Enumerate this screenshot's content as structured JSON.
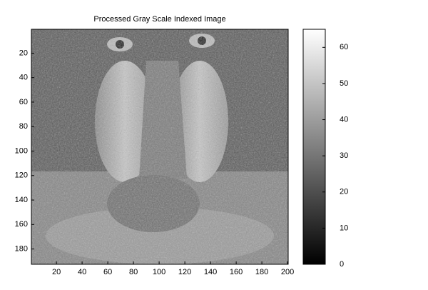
{
  "chart_data": {
    "type": "image",
    "title": "Processed Gray Scale Indexed Image",
    "xlim": [
      0.5,
      200.5
    ],
    "xticks": [
      20,
      40,
      60,
      80,
      100,
      120,
      140,
      160,
      180,
      200
    ],
    "ylim": [
      0.5,
      192.5
    ],
    "yticks": [
      20,
      40,
      60,
      80,
      100,
      120,
      140,
      160,
      180
    ],
    "colormap": "gray",
    "colorbar": {
      "ylim": [
        0,
        65
      ],
      "yticks": [
        0,
        10,
        20,
        30,
        40,
        50,
        60
      ]
    }
  }
}
